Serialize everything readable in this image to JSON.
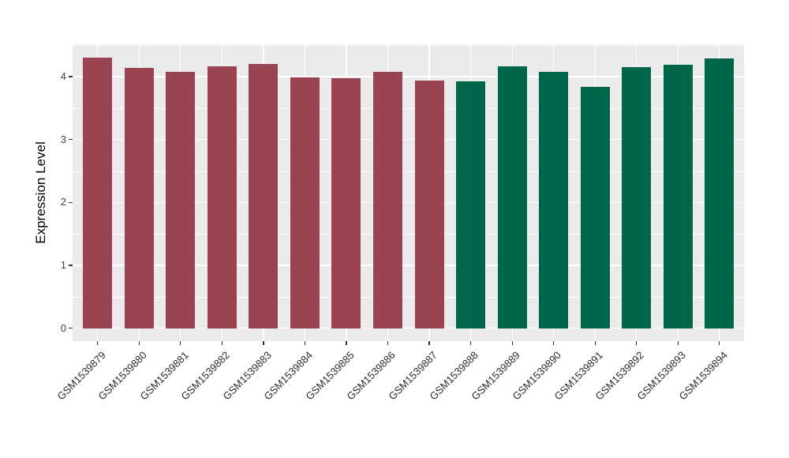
{
  "figure": {
    "background": "#FFFFFF",
    "panel_background": "#EBEBEB",
    "gridline_color": "#FFFFFF",
    "tick_color": "#333333",
    "axis_text_color": "#404040"
  },
  "chart_data": {
    "type": "bar",
    "title": "",
    "xlabel": "",
    "ylabel": "Expression Level",
    "ylim": [
      0,
      4.51
    ],
    "yticks": [
      0,
      1,
      2,
      3,
      4
    ],
    "yminor": [
      0.5,
      1.5,
      2.5,
      3.5,
      4.5
    ],
    "grid": true,
    "legend_position": "none",
    "x_label_angle": 45,
    "categories": [
      "GSM1539879",
      "GSM1539880",
      "GSM1539881",
      "GSM1539882",
      "GSM1539883",
      "GSM1539884",
      "GSM1539885",
      "GSM1539886",
      "GSM1539887",
      "GSM1539888",
      "GSM1539889",
      "GSM1539890",
      "GSM1539891",
      "GSM1539892",
      "GSM1539893",
      "GSM1539894"
    ],
    "values": [
      4.3,
      4.14,
      4.08,
      4.17,
      4.2,
      3.99,
      3.97,
      4.07,
      3.94,
      3.92,
      4.17,
      4.08,
      3.84,
      4.15,
      4.19,
      4.29
    ],
    "bar_groups": [
      1,
      1,
      1,
      1,
      1,
      1,
      1,
      1,
      1,
      2,
      2,
      2,
      2,
      2,
      2,
      2
    ],
    "group_colors": {
      "1": "#9A4453",
      "2": "#00664A"
    }
  }
}
